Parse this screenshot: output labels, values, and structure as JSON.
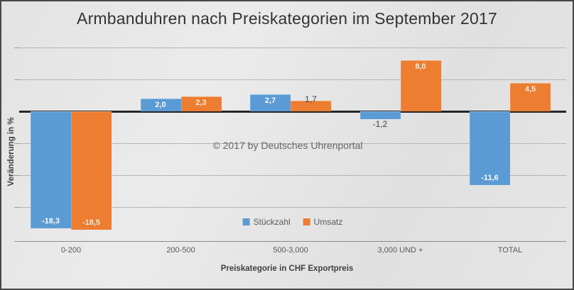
{
  "title": "Armbanduhren nach Preiskategorien im September 2017",
  "copyright": "© 2017 by Deutsches Uhrenportal",
  "colors": {
    "series_blue": "#5B9BD5",
    "series_orange": "#ED7D31",
    "label_on_bar": "#ffffff",
    "label_on_orange_bar": "#f7efdd",
    "label_outside": "#404040",
    "gridline": "#b5b5b5",
    "zero_line": "#262626",
    "background": "#e5e5e5"
  },
  "chart_data": {
    "type": "bar",
    "title": "Armbanduhren nach Preiskategorien im September 2017",
    "categories": [
      "0-200",
      "200-500",
      "500-3,000",
      "3,000 UND +",
      "TOTAL"
    ],
    "series": [
      {
        "name": "Stückzahl",
        "color": "#5B9BD5",
        "values": [
          -18.3,
          2.0,
          2.7,
          -1.2,
          -11.6
        ],
        "labels": [
          "-18,3",
          "2,0",
          "2,7",
          "-1,2",
          "-11,6"
        ]
      },
      {
        "name": "Umsatz",
        "color": "#ED7D31",
        "values": [
          -18.5,
          2.3,
          1.7,
          8.0,
          4.5
        ],
        "labels": [
          "-18,5",
          "2,3",
          "1,7",
          "8,0",
          "4,5"
        ]
      }
    ],
    "xlabel": "Preiskategorie in CHF Exportpreis",
    "ylabel": "Veränderung in %",
    "ylim": [
      -20.2,
      10.5
    ],
    "grid": true,
    "gridline_values": [
      10,
      5,
      -5,
      -10,
      -15
    ],
    "legend_position": "bottom-center",
    "annotation": "© 2017 by Deutsches Uhrenportal"
  }
}
